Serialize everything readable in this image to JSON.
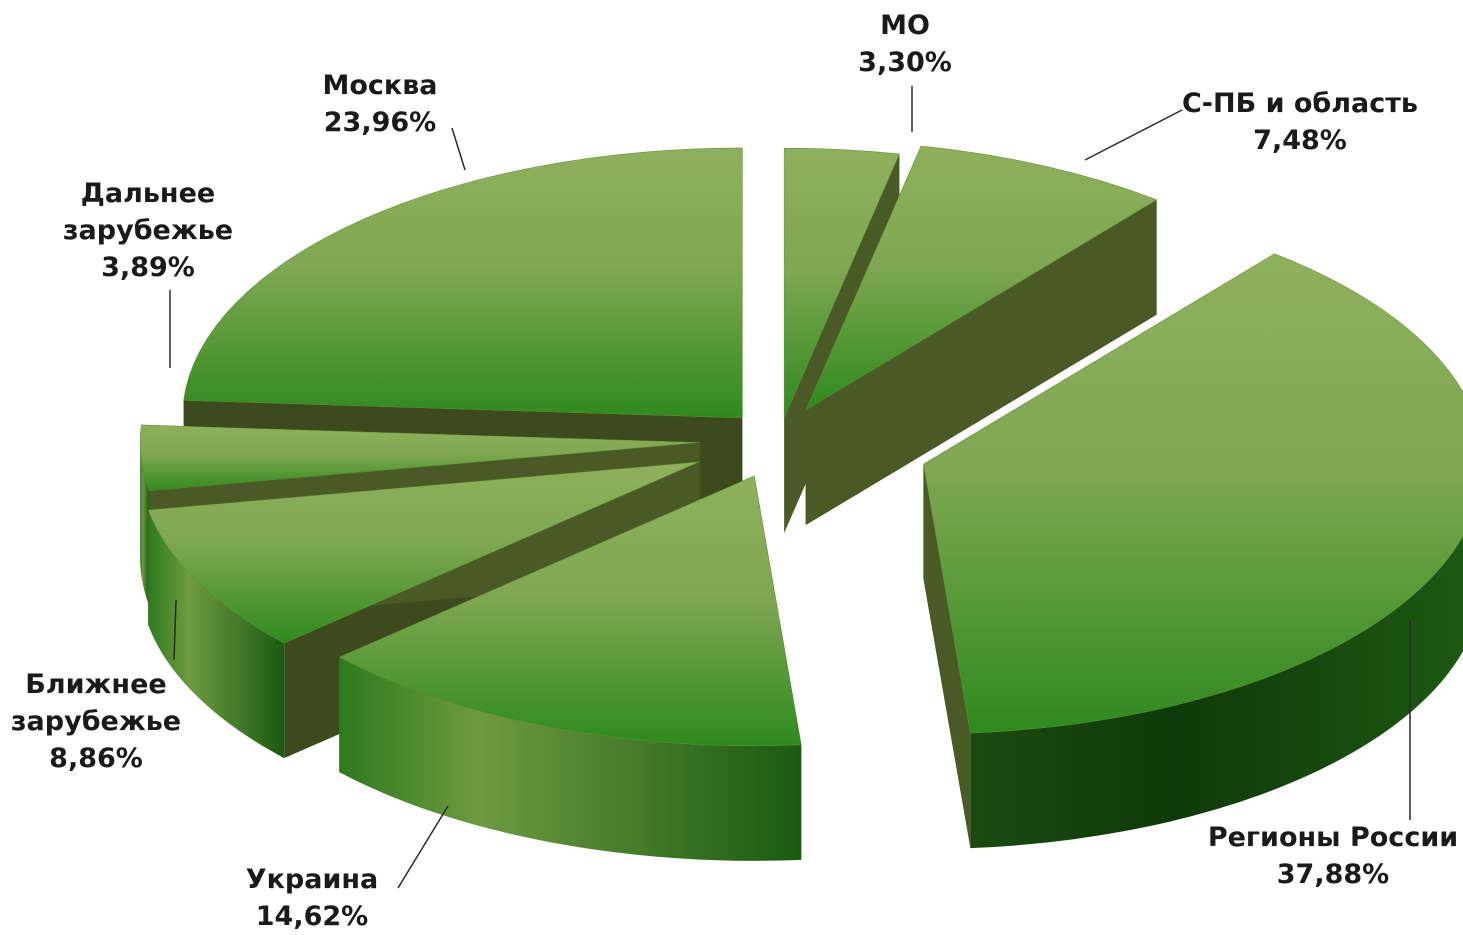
{
  "chart_data": {
    "type": "pie",
    "style": "3d-exploded",
    "slices": [
      {
        "label": "МО",
        "value_label": "3,30%",
        "value": 3.3
      },
      {
        "label": "С-ПБ и область",
        "value_label": "7,48%",
        "value": 7.48
      },
      {
        "label": "Регионы России",
        "value_label": "37,88%",
        "value": 37.88
      },
      {
        "label": "Украина",
        "value_label": "14,62%",
        "value": 14.62
      },
      {
        "label": "Ближнее зарубежье",
        "value_label": "8,86%",
        "value": 8.86
      },
      {
        "label": "Дальнее зарубежье",
        "value_label": "3,89%",
        "value": 3.89
      },
      {
        "label": "Москва",
        "value_label": "23,96%",
        "value": 23.96
      }
    ],
    "colors": {
      "top_light": "#8fb05c",
      "top_mid": "#5f9a3a",
      "top_dark": "#2f8a1e",
      "side_light": "#6f8f3a",
      "side_dark": "#0f3a0a",
      "inner": "#4a5a26"
    }
  }
}
